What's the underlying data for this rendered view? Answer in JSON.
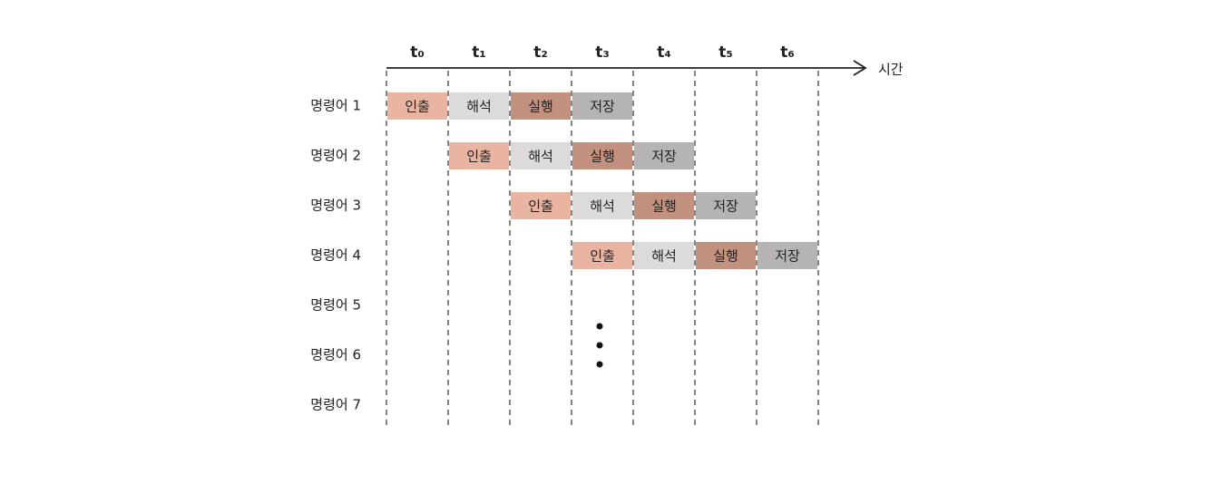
{
  "time_axis": {
    "labels": [
      "t₀",
      "t₁",
      "t₂",
      "t₃",
      "t₄",
      "t₅",
      "t₆"
    ],
    "arrow_label": "시간"
  },
  "stages": [
    {
      "label": "인출",
      "color": "#e9b5a2"
    },
    {
      "label": "해석",
      "color": "#dcdadb"
    },
    {
      "label": "실행",
      "color": "#c3917f"
    },
    {
      "label": "저장",
      "color": "#b5b3b4"
    }
  ],
  "rows": [
    {
      "label": "명령어 1",
      "cells": [
        "인출",
        "해석",
        "실행",
        "저장",
        null,
        null,
        null
      ]
    },
    {
      "label": "명령어 2",
      "cells": [
        null,
        "인출",
        "해석",
        "실행",
        "저장",
        null,
        null
      ]
    },
    {
      "label": "명령어 3",
      "cells": [
        null,
        null,
        "인출",
        "해석",
        "실행",
        "저장",
        null
      ]
    },
    {
      "label": "명령어 4",
      "cells": [
        null,
        null,
        null,
        "인출",
        "해석",
        "실행",
        "저장"
      ]
    },
    {
      "label": "명령어 5",
      "cells": []
    },
    {
      "label": "명령어 6",
      "cells": []
    },
    {
      "label": "명령어 7",
      "cells": []
    }
  ]
}
